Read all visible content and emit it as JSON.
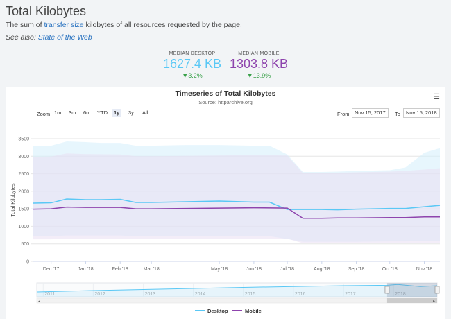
{
  "header": {
    "title": "Total Kilobytes",
    "desc_pre": "The sum of ",
    "desc_link": "transfer size",
    "desc_post": " kilobytes of all resources requested by the page.",
    "seealso_label": "See also:",
    "seealso_link": "State of the Web"
  },
  "stats": {
    "desktop": {
      "label": "MEDIAN DESKTOP",
      "value": "1627.4 KB",
      "change": "▼3.2%",
      "color": "#5ac8f5"
    },
    "mobile": {
      "label": "MEDIAN MOBILE",
      "value": "1303.8 KB",
      "change": "▼13.9%",
      "color": "#8e44ad"
    }
  },
  "toolbar": {
    "zoom_label": "Zoom",
    "zoom_options": [
      "1m",
      "3m",
      "6m",
      "YTD",
      "1y",
      "3y",
      "All"
    ],
    "zoom_selected": "1y",
    "from_label": "From",
    "from_value": "Nov 15, 2017",
    "to_label": "To",
    "to_value": "Nov 15, 2018",
    "menu_icon": "hamburger-menu-icon"
  },
  "chart_data": {
    "type": "line",
    "title": "Timeseries of Total Kilobytes",
    "subtitle": "Source: httparchive.org",
    "ylabel": "Total Kilobytes",
    "ylim": [
      0,
      3500
    ],
    "yticks": [
      0,
      500,
      1000,
      1500,
      2000,
      2500,
      3000,
      3500
    ],
    "xlim": [
      "2017-11-15",
      "2018-11-15"
    ],
    "xticks": [
      {
        "date": "2017-12-01",
        "label": "Dec '17"
      },
      {
        "date": "2018-01-01",
        "label": "Jan '18"
      },
      {
        "date": "2018-02-01",
        "label": "Feb '18"
      },
      {
        "date": "2018-03-01",
        "label": "Mar '18"
      },
      {
        "date": "2018-05-01",
        "label": "May '18"
      },
      {
        "date": "2018-06-01",
        "label": "Jun '18"
      },
      {
        "date": "2018-07-01",
        "label": "Jul '18"
      },
      {
        "date": "2018-08-01",
        "label": "Aug '18"
      },
      {
        "date": "2018-09-01",
        "label": "Sep '18"
      },
      {
        "date": "2018-10-01",
        "label": "Oct '18"
      },
      {
        "date": "2018-11-01",
        "label": "Nov '18"
      }
    ],
    "grid": true,
    "legend_position": "bottom-center",
    "series": [
      {
        "name": "Desktop",
        "color": "#5ac8f5",
        "band_color": "#d4effc",
        "points": [
          {
            "x": "2017-11-15",
            "y": 1660,
            "lo": 720,
            "hi": 3300
          },
          {
            "x": "2017-12-01",
            "y": 1670,
            "lo": 720,
            "hi": 3300
          },
          {
            "x": "2017-12-15",
            "y": 1780,
            "lo": 740,
            "hi": 3420
          },
          {
            "x": "2018-01-01",
            "y": 1760,
            "lo": 740,
            "hi": 3400
          },
          {
            "x": "2018-01-15",
            "y": 1760,
            "lo": 740,
            "hi": 3380
          },
          {
            "x": "2018-02-01",
            "y": 1770,
            "lo": 740,
            "hi": 3380
          },
          {
            "x": "2018-02-15",
            "y": 1680,
            "lo": 720,
            "hi": 3300
          },
          {
            "x": "2018-03-01",
            "y": 1680,
            "lo": 720,
            "hi": 3300
          },
          {
            "x": "2018-04-01",
            "y": 1700,
            "lo": 720,
            "hi": 3320
          },
          {
            "x": "2018-05-01",
            "y": 1720,
            "lo": 730,
            "hi": 3320
          },
          {
            "x": "2018-06-01",
            "y": 1690,
            "lo": 720,
            "hi": 3300
          },
          {
            "x": "2018-06-15",
            "y": 1690,
            "lo": 720,
            "hi": 3300
          },
          {
            "x": "2018-07-01",
            "y": 1480,
            "lo": 640,
            "hi": 3050
          },
          {
            "x": "2018-07-15",
            "y": 1480,
            "lo": 560,
            "hi": 2550
          },
          {
            "x": "2018-08-01",
            "y": 1480,
            "lo": 560,
            "hi": 2550
          },
          {
            "x": "2018-08-15",
            "y": 1470,
            "lo": 560,
            "hi": 2560
          },
          {
            "x": "2018-09-01",
            "y": 1490,
            "lo": 560,
            "hi": 2580
          },
          {
            "x": "2018-10-01",
            "y": 1510,
            "lo": 570,
            "hi": 2600
          },
          {
            "x": "2018-10-15",
            "y": 1510,
            "lo": 570,
            "hi": 2680
          },
          {
            "x": "2018-11-01",
            "y": 1560,
            "lo": 580,
            "hi": 3100
          },
          {
            "x": "2018-11-15",
            "y": 1600,
            "lo": 590,
            "hi": 3230
          }
        ]
      },
      {
        "name": "Mobile",
        "color": "#8e44ad",
        "band_color": "#e9dff2",
        "points": [
          {
            "x": "2017-11-15",
            "y": 1490,
            "lo": 630,
            "hi": 2980
          },
          {
            "x": "2017-12-01",
            "y": 1500,
            "lo": 630,
            "hi": 2990
          },
          {
            "x": "2017-12-15",
            "y": 1550,
            "lo": 650,
            "hi": 3080
          },
          {
            "x": "2018-01-01",
            "y": 1540,
            "lo": 650,
            "hi": 3060
          },
          {
            "x": "2018-02-01",
            "y": 1540,
            "lo": 650,
            "hi": 3050
          },
          {
            "x": "2018-02-15",
            "y": 1500,
            "lo": 640,
            "hi": 3000
          },
          {
            "x": "2018-03-01",
            "y": 1500,
            "lo": 640,
            "hi": 3000
          },
          {
            "x": "2018-04-01",
            "y": 1510,
            "lo": 640,
            "hi": 3010
          },
          {
            "x": "2018-05-01",
            "y": 1520,
            "lo": 650,
            "hi": 3020
          },
          {
            "x": "2018-06-01",
            "y": 1530,
            "lo": 650,
            "hi": 3030
          },
          {
            "x": "2018-07-01",
            "y": 1520,
            "lo": 650,
            "hi": 3020
          },
          {
            "x": "2018-07-15",
            "y": 1230,
            "lo": 520,
            "hi": 2520
          },
          {
            "x": "2018-08-01",
            "y": 1230,
            "lo": 520,
            "hi": 2520
          },
          {
            "x": "2018-08-15",
            "y": 1240,
            "lo": 520,
            "hi": 2530
          },
          {
            "x": "2018-09-01",
            "y": 1240,
            "lo": 520,
            "hi": 2540
          },
          {
            "x": "2018-10-01",
            "y": 1250,
            "lo": 520,
            "hi": 2560
          },
          {
            "x": "2018-10-15",
            "y": 1250,
            "lo": 520,
            "hi": 2580
          },
          {
            "x": "2018-11-01",
            "y": 1270,
            "lo": 530,
            "hi": 2620
          },
          {
            "x": "2018-11-15",
            "y": 1270,
            "lo": 530,
            "hi": 2660
          }
        ]
      }
    ],
    "navigator": {
      "range": [
        "2010-11-15",
        "2018-11-15"
      ],
      "year_labels": [
        "2011",
        "2012",
        "2013",
        "2014",
        "2015",
        "2016",
        "2017",
        "2018"
      ],
      "selected": [
        "2017-11-15",
        "2018-11-15"
      ],
      "points": [
        {
          "x": "2010-11-15",
          "y": 700
        },
        {
          "x": "2012-01-01",
          "y": 900
        },
        {
          "x": "2013-01-01",
          "y": 1050
        },
        {
          "x": "2014-01-01",
          "y": 1200
        },
        {
          "x": "2015-01-01",
          "y": 1350
        },
        {
          "x": "2016-01-01",
          "y": 1480
        },
        {
          "x": "2017-01-01",
          "y": 1600
        },
        {
          "x": "2017-11-15",
          "y": 1660
        },
        {
          "x": "2018-02-01",
          "y": 1770
        },
        {
          "x": "2018-07-15",
          "y": 1480
        },
        {
          "x": "2018-11-15",
          "y": 1600
        }
      ]
    }
  }
}
